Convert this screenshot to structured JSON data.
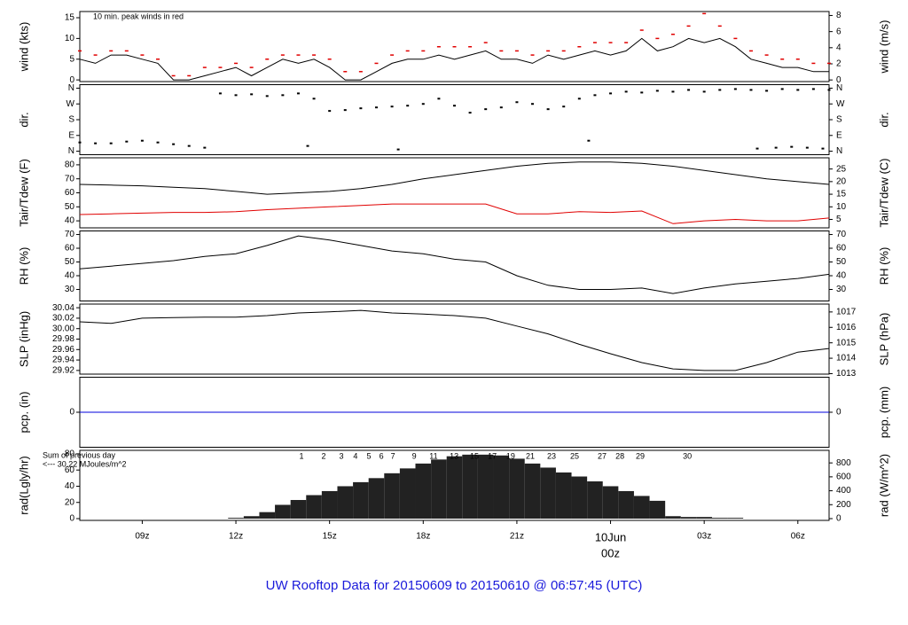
{
  "title": "UW Rooftop Data for 20150609  to  20150610 @ 06:57:45  (UTC)",
  "chart_data": [
    {
      "type": "line",
      "ylabel": "wind (kts)",
      "y2label": "wind (m/s)",
      "ylim": [
        -0.4,
        16.5
      ],
      "yticks": [
        0,
        5,
        10,
        15
      ],
      "y2lim": [
        -0.2,
        8.49
      ],
      "y2ticks": [
        0,
        2,
        4,
        6,
        8
      ],
      "annotations": [
        {
          "text": "10 min. peak winds in red",
          "color": "#d00000"
        }
      ],
      "x": [
        7,
        7.5,
        8,
        8.5,
        9,
        9.5,
        10,
        10.5,
        11,
        11.5,
        12,
        12.5,
        13,
        13.5,
        14,
        14.5,
        15,
        15.5,
        16,
        16.5,
        17,
        17.5,
        18,
        18.5,
        19,
        19.5,
        20,
        20.5,
        21,
        21.5,
        22,
        22.5,
        23,
        23.5,
        24,
        24.5,
        25,
        25.5,
        26,
        26.5,
        27,
        27.5,
        28,
        28.5,
        29,
        29.5,
        30,
        30.5,
        31
      ],
      "series": [
        {
          "color": "#000000",
          "values": [
            5,
            4,
            6,
            6,
            5,
            4,
            0,
            0,
            1,
            2,
            3,
            1,
            3,
            5,
            4,
            5,
            3,
            0,
            0,
            2,
            4,
            5,
            5,
            6,
            5,
            6,
            7,
            5,
            5,
            4,
            6,
            5,
            6,
            7,
            6,
            7,
            10,
            7,
            8,
            10,
            9,
            10,
            8,
            5,
            4,
            3,
            3,
            2,
            2
          ]
        },
        {
          "color": "#e00000",
          "marker": "dash",
          "values": [
            7,
            6,
            7,
            7,
            6,
            5,
            1,
            1,
            3,
            3,
            4,
            3,
            5,
            6,
            6,
            6,
            5,
            2,
            2,
            4,
            6,
            7,
            7,
            8,
            8,
            8,
            9,
            7,
            7,
            6,
            7,
            7,
            8,
            9,
            9,
            9,
            12,
            10,
            11,
            13,
            16,
            13,
            10,
            7,
            6,
            5,
            5,
            4,
            4
          ]
        }
      ]
    },
    {
      "type": "scatter",
      "ylabel": "dir.",
      "y2label": "dir.",
      "ylim": [
        -20,
        380
      ],
      "yticks": [
        {
          "value": 0,
          "label": "N"
        },
        {
          "value": 90,
          "label": "E"
        },
        {
          "value": 180,
          "label": "S"
        },
        {
          "value": 270,
          "label": "W"
        },
        {
          "value": 360,
          "label": "N"
        }
      ],
      "y2lim": [
        -20,
        380
      ],
      "y2ticks": [
        {
          "value": 0,
          "label": "N"
        },
        {
          "value": 90,
          "label": "E"
        },
        {
          "value": 180,
          "label": "S"
        },
        {
          "value": 270,
          "label": "W"
        },
        {
          "value": 360,
          "label": "N"
        }
      ],
      "x": [
        7,
        7.5,
        8,
        8.5,
        9,
        9.5,
        10,
        10.5,
        11,
        11.5,
        12,
        12.5,
        13,
        13.5,
        14,
        14.5,
        15,
        15.5,
        16,
        16.5,
        17,
        17.5,
        18,
        18.5,
        19,
        19.5,
        20,
        20.5,
        21,
        21.5,
        22,
        22.5,
        23,
        23.5,
        24,
        24.5,
        25,
        25.5,
        26,
        26.5,
        27,
        27.5,
        28,
        28.5,
        29,
        29.5,
        30,
        30.5,
        31,
        28.7,
        29.3,
        29.8,
        30.3,
        30.8,
        14.3,
        17.2,
        23.3
      ],
      "series": [
        {
          "color": "#000000",
          "values": [
            50,
            45,
            45,
            55,
            60,
            50,
            40,
            30,
            20,
            330,
            320,
            325,
            315,
            320,
            330,
            300,
            230,
            235,
            245,
            250,
            255,
            260,
            270,
            300,
            260,
            220,
            240,
            250,
            280,
            270,
            240,
            255,
            300,
            320,
            330,
            340,
            335,
            345,
            340,
            350,
            340,
            350,
            355,
            350,
            345,
            355,
            350,
            355,
            350,
            15,
            20,
            25,
            20,
            15,
            30,
            10,
            60
          ]
        }
      ]
    },
    {
      "type": "line",
      "ylabel": "Tair/Tdew (F)",
      "y2label": "Tair/Tdew (C)",
      "ylim": [
        35,
        85
      ],
      "yticks": [
        40,
        50,
        60,
        70,
        80
      ],
      "y2lim": [
        1.67,
        29.44
      ],
      "y2ticks": [
        5,
        10,
        15,
        20,
        25
      ],
      "x": [
        7,
        8,
        9,
        10,
        11,
        12,
        13,
        14,
        15,
        16,
        17,
        18,
        19,
        20,
        21,
        22,
        23,
        24,
        25,
        26,
        27,
        28,
        29,
        30,
        31
      ],
      "series": [
        {
          "color": "#000000",
          "values": [
            66,
            65.5,
            65,
            64,
            63,
            61,
            59,
            60,
            61,
            63,
            66,
            70,
            73,
            76,
            79,
            81,
            82,
            82,
            81,
            79,
            76,
            73,
            70,
            68,
            66
          ]
        },
        {
          "color": "#e00000",
          "values": [
            44.5,
            45,
            45.5,
            46,
            46,
            46.5,
            48,
            49,
            50,
            51,
            52,
            52,
            52,
            52,
            45,
            45,
            46.5,
            46,
            47,
            38,
            40,
            41,
            40,
            40,
            42
          ]
        }
      ]
    },
    {
      "type": "line",
      "ylabel": "RH (%)",
      "y2label": "RH (%)",
      "ylim": [
        21.6,
        72.6
      ],
      "yticks": [
        30,
        40,
        50,
        60,
        70
      ],
      "y2lim": [
        21.6,
        72.6
      ],
      "y2ticks": [
        30,
        40,
        50,
        60,
        70
      ],
      "x": [
        7,
        8,
        9,
        10,
        11,
        12,
        13,
        14,
        15,
        16,
        17,
        18,
        19,
        20,
        21,
        22,
        23,
        24,
        25,
        26,
        27,
        28,
        29,
        30,
        31
      ],
      "series": [
        {
          "color": "#000000",
          "values": [
            45,
            47,
            49,
            51,
            54,
            56,
            62,
            69,
            66,
            62,
            58,
            56,
            52,
            50,
            40,
            33,
            30,
            30,
            31,
            27,
            31,
            34,
            36,
            38,
            41
          ]
        }
      ]
    },
    {
      "type": "line",
      "ylabel": "SLP (inHg)",
      "y2label": "SLP (hPa)",
      "ylim": [
        29.913,
        30.047
      ],
      "yticks": [
        29.92,
        29.94,
        29.96,
        29.98,
        {
          "value": 30,
          "label": "30.00"
        },
        30.02,
        30.04
      ],
      "y2lim": [
        1012.97,
        1017.51
      ],
      "y2ticks": [
        1013,
        1014,
        1015,
        1016,
        1017
      ],
      "x": [
        7,
        8,
        9,
        10,
        11,
        12,
        13,
        14,
        15,
        16,
        17,
        18,
        19,
        20,
        21,
        22,
        23,
        24,
        25,
        26,
        27,
        28,
        29,
        30,
        31
      ],
      "series": [
        {
          "color": "#000000",
          "values": [
            30.013,
            30.01,
            30.02,
            30.021,
            30.022,
            30.022,
            30.025,
            30.03,
            30.032,
            30.035,
            30.03,
            30.028,
            30.025,
            30.02,
            30.005,
            29.99,
            29.97,
            29.952,
            29.935,
            29.923,
            29.92,
            29.92,
            29.935,
            29.955,
            29.962
          ]
        }
      ]
    },
    {
      "type": "line",
      "ylabel": "pcp. (in)",
      "y2label": "pcp. (mm)",
      "ylim": [
        -0.1,
        0.1
      ],
      "yticks": [
        0
      ],
      "y2lim": [
        -2.54,
        2.54
      ],
      "y2ticks": [
        0
      ],
      "x": [
        7,
        31
      ],
      "series": [
        {
          "color": "#0000dd",
          "values": [
            0,
            0
          ]
        }
      ]
    },
    {
      "type": "bar",
      "ylabel": "rad(Lgly/hr)",
      "y2label": "rad (W/m^2)",
      "ylim": [
        -2.2,
        84.3
      ],
      "yticks": [
        0,
        20,
        40,
        60,
        80
      ],
      "y2lim": [
        -25.6,
        980.4
      ],
      "y2ticks": [
        0,
        200,
        400,
        600,
        800
      ],
      "annotations": [
        {
          "text": "Sum of previous day",
          "color": "#9900cc"
        },
        {
          "text": "<--- 30.22 MJoules/m^2",
          "color": "#9900cc"
        }
      ],
      "hour_marks": {
        "color": "#9900cc",
        "x": [
          14.1,
          14.81,
          15.38,
          15.83,
          16.26,
          16.66,
          17.03,
          17.71,
          18.33,
          18.99,
          19.64,
          20.21,
          20.8,
          21.43,
          22.11,
          22.85,
          23.73,
          24.3,
          24.95,
          26.46
        ],
        "labels": [
          "1",
          "2",
          "3",
          "4",
          "5",
          "6",
          "7",
          "9",
          "11",
          "13",
          "15",
          "17",
          "19",
          "21",
          "23",
          "25",
          "27",
          "28",
          "29",
          "30"
        ]
      },
      "xlim": [
        7,
        31
      ],
      "xticks": [
        {
          "value": 9,
          "label": "09z"
        },
        {
          "value": 12,
          "label": "12z"
        },
        {
          "value": 15,
          "label": "15z"
        },
        {
          "value": 18,
          "label": "18z"
        },
        {
          "value": 21,
          "label": "21z"
        },
        {
          "value": 24,
          "label": "00z",
          "color": "#e00000"
        },
        {
          "value": 27,
          "label": "03z"
        },
        {
          "value": 30,
          "label": "06z"
        }
      ],
      "date_label": {
        "text": "10Jun",
        "x": 24,
        "color": "#e00000"
      },
      "x": [
        7,
        7.5,
        8,
        8.5,
        9,
        9.5,
        10,
        10.5,
        11,
        11.5,
        12,
        12.5,
        13,
        13.5,
        14,
        14.5,
        15,
        15.5,
        16,
        16.5,
        17,
        17.5,
        18,
        18.5,
        19,
        19.5,
        20,
        20.5,
        21,
        21.5,
        22,
        22.5,
        23,
        23.5,
        24,
        24.5,
        25,
        25.5,
        26,
        26.5,
        27,
        27.5,
        28,
        28.5,
        29,
        29.5,
        30,
        30.5,
        31
      ],
      "series": [
        {
          "color": "#222222",
          "values": [
            0,
            0,
            0,
            0,
            0,
            0,
            0,
            0,
            0,
            0,
            1,
            3,
            8,
            17,
            23,
            29,
            34,
            40,
            45,
            50,
            56,
            62,
            68,
            73,
            77,
            79,
            79,
            78,
            74,
            68,
            63,
            57,
            52,
            46,
            40,
            34,
            28,
            22,
            3,
            2,
            2,
            1,
            1,
            0,
            0,
            0,
            0,
            0,
            0
          ]
        }
      ]
    }
  ]
}
